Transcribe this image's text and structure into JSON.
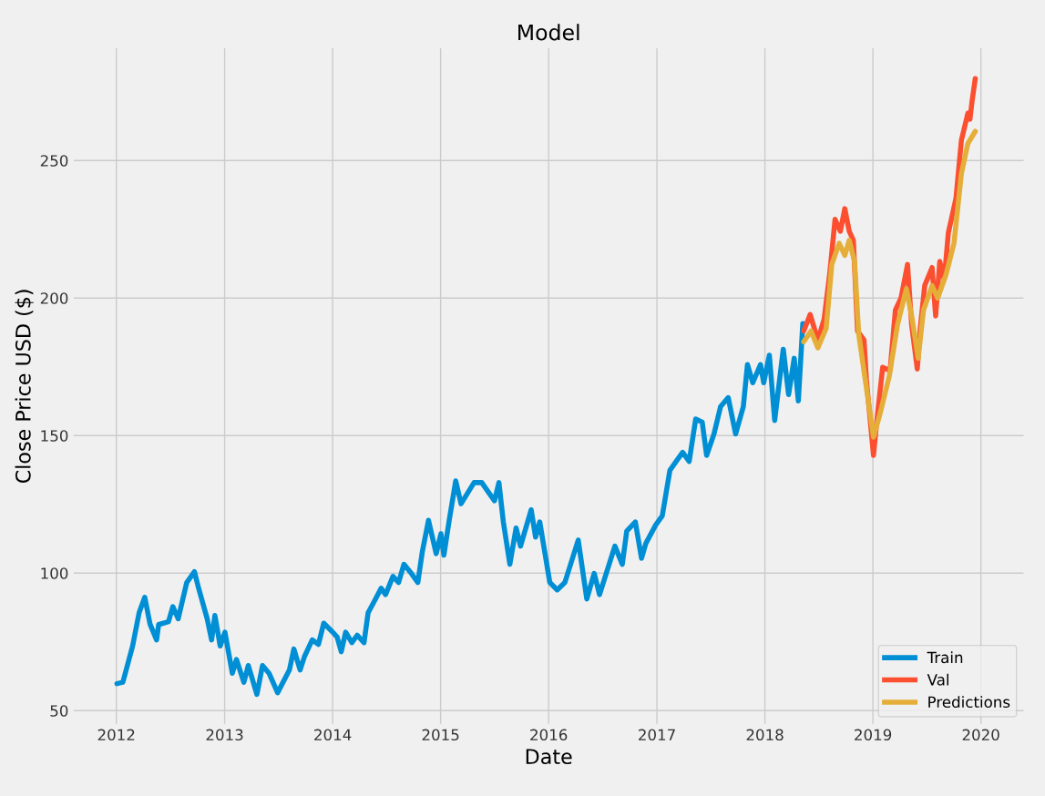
{
  "chart_data": {
    "type": "line",
    "title": "Model",
    "xlabel": "Date",
    "ylabel": "Close Price USD ($)",
    "xlim": [
      "2011-08-08",
      "2020-05-26"
    ],
    "ylim": [
      45,
      291
    ],
    "xticks": [
      "2012",
      "2013",
      "2014",
      "2015",
      "2016",
      "2017",
      "2018",
      "2019",
      "2020"
    ],
    "yticks": [
      50,
      100,
      150,
      200,
      250
    ],
    "grid": true,
    "legend": "bottom right",
    "marker": "none",
    "line_style": "solid",
    "series": [
      {
        "name": "Train",
        "color": "#008fd5",
        "x": [
          "2012-01-03",
          "2012-01-23",
          "2012-02-25",
          "2012-03-18",
          "2012-04-06",
          "2012-04-24",
          "2012-05-16",
          "2012-05-23",
          "2012-06-25",
          "2012-07-10",
          "2012-07-28",
          "2012-08-26",
          "2012-09-21",
          "2012-10-05",
          "2012-11-03",
          "2012-11-18",
          "2012-11-29",
          "2012-12-17",
          "2013-01-02",
          "2013-01-27",
          "2013-02-10",
          "2013-03-07",
          "2013-03-22",
          "2013-04-20",
          "2013-05-09",
          "2013-05-31",
          "2013-06-29",
          "2013-08-08",
          "2013-08-23",
          "2013-09-13",
          "2013-09-28",
          "2013-10-24",
          "2013-11-14",
          "2013-12-02",
          "2013-12-28",
          "2014-01-16",
          "2014-01-30",
          "2014-02-14",
          "2014-03-07",
          "2014-03-25",
          "2014-04-17",
          "2014-05-01",
          "2014-05-23",
          "2014-06-14",
          "2014-06-29",
          "2014-07-24",
          "2014-08-12",
          "2014-08-30",
          "2014-09-24",
          "2014-10-16",
          "2014-10-31",
          "2014-11-21",
          "2014-12-17",
          "2015-01-02",
          "2015-01-12",
          "2015-01-30",
          "2015-02-21",
          "2015-03-11",
          "2015-04-24",
          "2015-05-20",
          "2015-07-02",
          "2015-07-17",
          "2015-08-01",
          "2015-08-23",
          "2015-09-13",
          "2015-09-28",
          "2015-11-03",
          "2015-11-18",
          "2015-12-02",
          "2016-01-05",
          "2016-01-30",
          "2016-02-25",
          "2016-04-10",
          "2016-05-09",
          "2016-06-03",
          "2016-06-21",
          "2016-08-12",
          "2016-09-06",
          "2016-09-21",
          "2016-10-20",
          "2016-11-10",
          "2016-11-25",
          "2016-12-28",
          "2017-01-19",
          "2017-02-14",
          "2017-03-07",
          "2017-03-29",
          "2017-04-20",
          "2017-05-12",
          "2017-06-03",
          "2017-06-18",
          "2017-07-13",
          "2017-08-04",
          "2017-08-30",
          "2017-09-24",
          "2017-10-20",
          "2017-11-03",
          "2017-11-21",
          "2017-12-17",
          "2017-12-28",
          "2018-01-16",
          "2018-02-03",
          "2018-03-04",
          "2018-03-22",
          "2018-04-10",
          "2018-04-24",
          "2018-05-09"
        ],
        "values": [
          59.8,
          60.3,
          73.5,
          85.6,
          91.2,
          81.4,
          75.7,
          81.3,
          82.3,
          87.8,
          83.4,
          96.6,
          100.5,
          94.5,
          83.4,
          75.7,
          84.6,
          73.5,
          78.5,
          63.6,
          68.6,
          60.3,
          66.4,
          55.9,
          66.4,
          63.6,
          56.5,
          64.8,
          72.4,
          64.8,
          69.7,
          75.7,
          74.1,
          81.8,
          79.0,
          76.8,
          71.4,
          78.5,
          74.7,
          77.4,
          74.7,
          85.6,
          90.0,
          94.5,
          92.2,
          98.8,
          96.6,
          103.2,
          99.9,
          96.6,
          107.7,
          119.2,
          107.1,
          114.3,
          106.5,
          119.2,
          133.5,
          125.2,
          132.9,
          132.9,
          126.3,
          132.9,
          118.6,
          103.2,
          116.4,
          109.8,
          123.0,
          113.1,
          118.6,
          96.6,
          93.9,
          96.6,
          112.0,
          90.6,
          99.9,
          92.2,
          109.8,
          103.2,
          115.3,
          118.6,
          105.4,
          110.9,
          117.5,
          120.8,
          137.4,
          140.6,
          143.9,
          140.6,
          156.0,
          154.9,
          142.8,
          150.6,
          160.5,
          163.8,
          150.6,
          160.5,
          175.8,
          169.2,
          175.8,
          169.2,
          179.2,
          155.5,
          181.4,
          164.9,
          178.1,
          162.6,
          190.7
        ]
      },
      {
        "name": "Val",
        "color": "#fc4f30",
        "x": [
          "2018-05-12",
          "2018-06-03",
          "2018-06-29",
          "2018-07-20",
          "2018-08-08",
          "2018-08-26",
          "2018-09-13",
          "2018-09-28",
          "2018-10-13",
          "2018-10-27",
          "2018-11-10",
          "2018-12-02",
          "2018-12-10",
          "2019-01-03",
          "2019-01-16",
          "2019-02-03",
          "2019-02-28",
          "2019-03-18",
          "2019-04-06",
          "2019-04-28",
          "2019-05-12",
          "2019-05-31",
          "2019-06-10",
          "2019-06-25",
          "2019-07-20",
          "2019-08-01",
          "2019-08-15",
          "2019-08-30",
          "2019-09-13",
          "2019-10-09",
          "2019-10-27",
          "2019-11-18",
          "2019-11-25",
          "2019-12-02",
          "2019-12-13"
        ],
        "values": [
          188.0,
          194.0,
          184.7,
          192.3,
          208.8,
          228.6,
          224.3,
          232.5,
          224.3,
          221.0,
          188.0,
          184.7,
          170.4,
          142.8,
          157.1,
          174.8,
          173.6,
          195.6,
          200.0,
          212.2,
          190.2,
          174.2,
          189.0,
          204.5,
          211.1,
          193.5,
          213.3,
          206.7,
          223.7,
          236.4,
          257.3,
          267.2,
          265.0,
          271.5,
          279.8
        ]
      },
      {
        "name": "Predictions",
        "color": "#e5ae38",
        "x": [
          "2018-05-12",
          "2018-06-06",
          "2018-06-29",
          "2018-07-27",
          "2018-08-15",
          "2018-09-09",
          "2018-09-28",
          "2018-10-13",
          "2018-10-31",
          "2018-11-14",
          "2018-12-06",
          "2019-01-03",
          "2019-01-23",
          "2019-02-25",
          "2019-03-25",
          "2019-04-24",
          "2019-05-12",
          "2019-06-03",
          "2019-06-21",
          "2019-07-20",
          "2019-08-08",
          "2019-09-06",
          "2019-10-02",
          "2019-10-27",
          "2019-11-18",
          "2019-12-13"
        ],
        "values": [
          184.1,
          188.0,
          181.9,
          189.0,
          212.2,
          219.9,
          215.5,
          221.0,
          213.3,
          186.9,
          170.4,
          149.4,
          157.1,
          171.4,
          190.2,
          203.4,
          193.5,
          178.1,
          195.6,
          204.5,
          200.0,
          208.8,
          219.9,
          245.2,
          256.2,
          260.6
        ]
      }
    ]
  }
}
